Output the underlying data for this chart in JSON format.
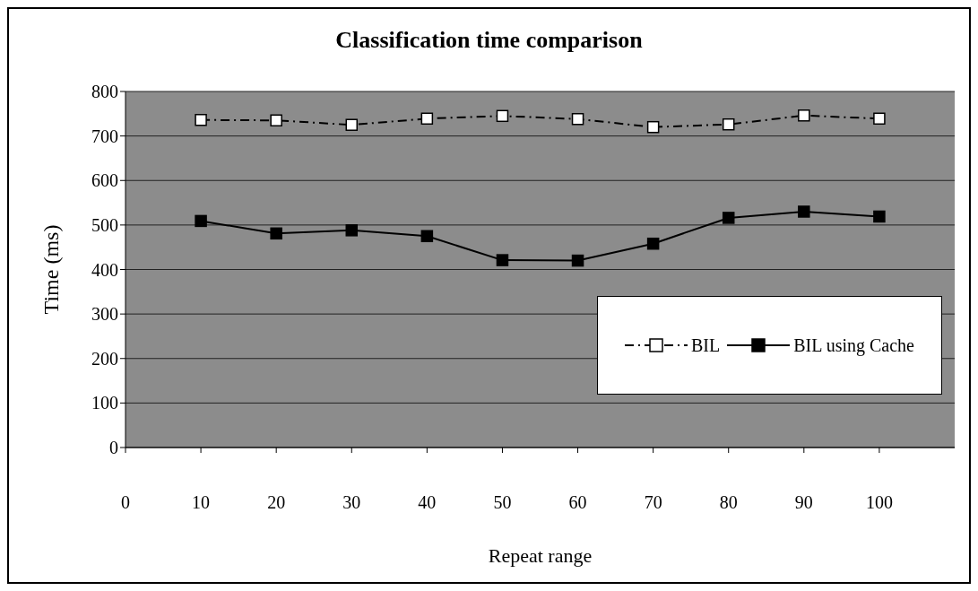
{
  "chart_data": {
    "type": "line",
    "title": "Classification time comparison",
    "xlabel": "Repeat range",
    "ylabel": "Time (ms)",
    "x": [
      10,
      20,
      30,
      40,
      50,
      60,
      70,
      80,
      90,
      100
    ],
    "series": [
      {
        "name": "BIL",
        "color": "#000000",
        "line_style": "dashed",
        "values": [
          736,
          735,
          725,
          739,
          745,
          738,
          720,
          726,
          746,
          739
        ]
      },
      {
        "name": "BIL using Cache",
        "color": "#000000",
        "line_style": "solid",
        "values": [
          509,
          481,
          488,
          475,
          421,
          420,
          458,
          516,
          530,
          519
        ]
      }
    ],
    "xlim": [
      0,
      110
    ],
    "xticks": [
      0,
      10,
      20,
      30,
      40,
      50,
      60,
      70,
      80,
      90,
      100
    ],
    "ylim": [
      0,
      800
    ],
    "yticks": [
      0,
      100,
      200,
      300,
      400,
      500,
      600,
      700,
      800
    ],
    "grid": "y",
    "legend": "right",
    "marker": "square"
  }
}
